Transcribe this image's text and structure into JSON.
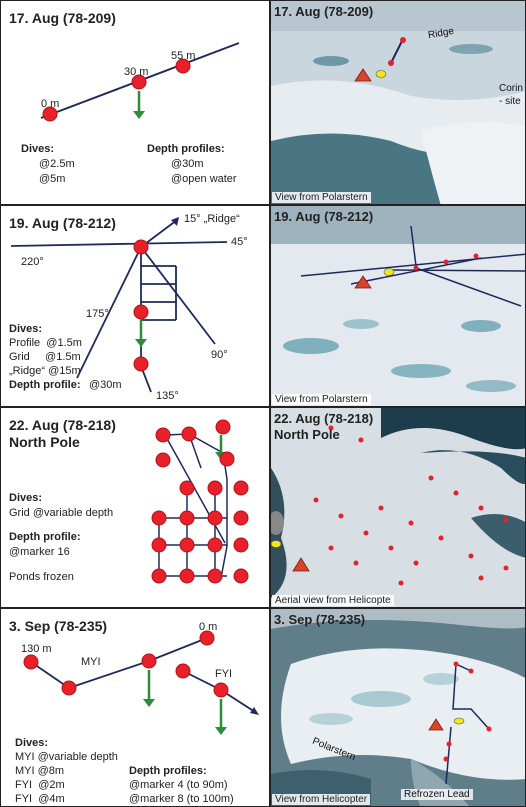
{
  "panels": [
    {
      "title": "17. Aug (78-209)",
      "labels": {
        "m0": "0 m",
        "m30": "30 m",
        "m55": "55 m"
      },
      "dives_heading": "Dives:",
      "dives": [
        "@2.5m",
        "@5m"
      ],
      "profiles_heading": "Depth profiles:",
      "profiles": [
        "@30m",
        "@open water"
      ],
      "photo_title": "17. Aug (78-209)",
      "photo_labels": {
        "ridge": "Ridge",
        "coring": "Corin",
        "site": "- site"
      },
      "caption": "View from Polarstern"
    },
    {
      "title": "19. Aug (78-212)",
      "labels": {
        "a15": "15° „Ridge“",
        "a45": "45°",
        "a220": "220°",
        "a175": "175°",
        "a90": "90°",
        "a135": "135°"
      },
      "dives_heading": "Dives:",
      "dives": [
        "Profile  @1.5m",
        "Grid     @1.5m",
        "„Ridge“ @15m"
      ],
      "profiles_heading": "Depth profile:",
      "profiles": [
        "@30m"
      ],
      "photo_title": "19. Aug (78-212)",
      "caption": "View from Polarstern"
    },
    {
      "title": "22. Aug (78-218)",
      "subtitle": "North Pole",
      "dives_heading": "Dives:",
      "dives": [
        "Grid @variable depth"
      ],
      "profiles_heading": "Depth profile:",
      "profiles": [
        "@marker 16"
      ],
      "note": "Ponds frozen",
      "photo_title": "22. Aug (78-218)",
      "photo_subtitle": "North Pole",
      "caption": "Aerial view from Helicopte"
    },
    {
      "title": "3. Sep (78-235)",
      "labels": {
        "m130": "130 m",
        "m0": "0 m",
        "myi": "MYI",
        "fyi": "FYI"
      },
      "dives_heading": "Dives:",
      "dives": [
        "MYI @variable depth",
        "MYI @8m",
        "FYI  @2m",
        "FYI  @4m"
      ],
      "profiles_heading": "Depth profiles:",
      "profiles": [
        "@marker 4 (to 90m)",
        "@marker 8 (to 100m)"
      ],
      "photo_title": "3. Sep (78-235)",
      "photo_labels": {
        "polarstern": "Polarstern",
        "lead": "Refrozen Lead"
      },
      "caption": "View from Helicopter"
    }
  ],
  "colors": {
    "marker": "#e8202a",
    "line": "#1e2a5e",
    "arrow": "#2e8b3a",
    "triangle": "#d8442a",
    "yellow": "#f5e619",
    "ice": "#e9eef2",
    "water": "#3f6f82"
  },
  "icons": [
    "red-dot-marker",
    "green-down-arrow",
    "red-triangle-polarstern",
    "yellow-oval-site"
  ]
}
